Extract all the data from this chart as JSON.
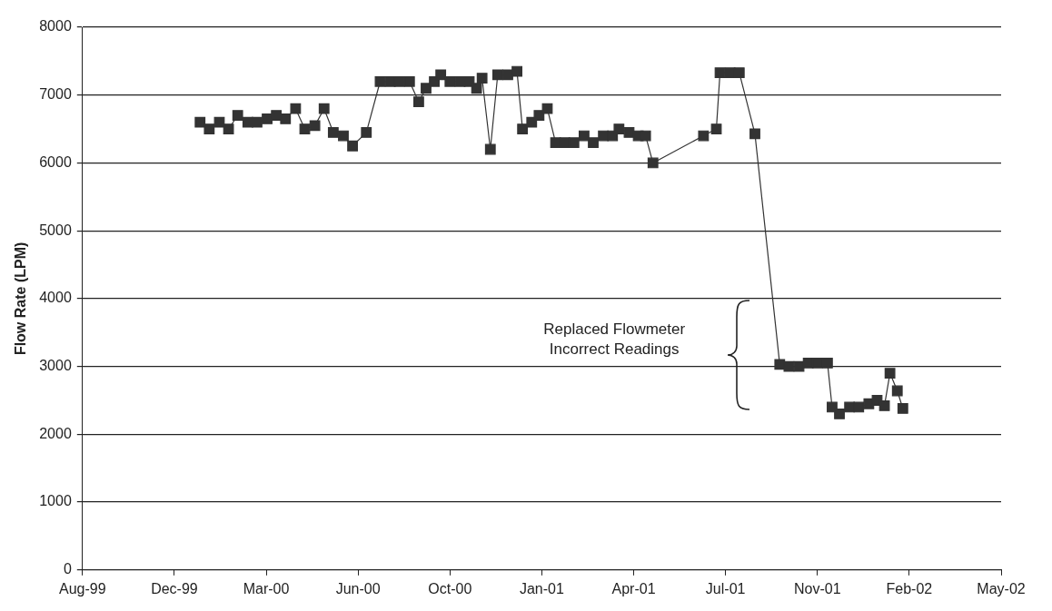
{
  "chart_data": {
    "type": "line",
    "ylabel": "Flow Rate (LPM)",
    "marker": "square",
    "line_style": "solid",
    "grid": "y",
    "legend": false,
    "annotations": [
      "Replaced Flowmeter\nIncorrect Readings"
    ],
    "xlim": [
      "1999-08-28",
      "2002-05-24"
    ],
    "xticks": [
      {
        "value": "1999-08-28",
        "label": "Aug-99"
      },
      {
        "value": "1999-12-06",
        "label": "Dec-99"
      },
      {
        "value": "2000-03-15",
        "label": "Mar-00"
      },
      {
        "value": "2000-06-23",
        "label": "Jun-00"
      },
      {
        "value": "2000-10-01",
        "label": "Oct-00"
      },
      {
        "value": "2001-01-09",
        "label": "Jan-01"
      },
      {
        "value": "2001-04-19",
        "label": "Apr-01"
      },
      {
        "value": "2001-07-28",
        "label": "Jul-01"
      },
      {
        "value": "2001-11-05",
        "label": "Nov-01"
      },
      {
        "value": "2002-02-13",
        "label": "Feb-02"
      },
      {
        "value": "2002-05-24",
        "label": "May-02"
      }
    ],
    "ylim": [
      0,
      8000
    ],
    "yticks": [
      0,
      1000,
      2000,
      3000,
      4000,
      5000,
      6000,
      7000,
      8000
    ],
    "series": [
      {
        "color": "#333333",
        "x": [
          "2000-01-03",
          "2000-01-13",
          "2000-01-24",
          "2000-02-03",
          "2000-02-13",
          "2000-02-24",
          "2000-03-05",
          "2000-03-16",
          "2000-03-26",
          "2000-04-05",
          "2000-04-16",
          "2000-04-26",
          "2000-05-07",
          "2000-05-17",
          "2000-05-27",
          "2000-06-07",
          "2000-06-17",
          "2000-07-02",
          "2000-07-17",
          "2000-07-28",
          "2000-08-07",
          "2000-08-18",
          "2000-08-28",
          "2000-09-05",
          "2000-09-14",
          "2000-09-21",
          "2000-10-01",
          "2000-10-12",
          "2000-10-22",
          "2000-10-30",
          "2000-11-05",
          "2000-11-14",
          "2000-11-22",
          "2000-12-03",
          "2000-12-13",
          "2000-12-19",
          "2000-12-29",
          "2001-01-06",
          "2001-01-15",
          "2001-01-24",
          "2001-02-03",
          "2001-02-13",
          "2001-02-24",
          "2001-03-06",
          "2001-03-17",
          "2001-03-27",
          "2001-04-03",
          "2001-04-14",
          "2001-04-24",
          "2001-05-02",
          "2001-05-10",
          "2001-07-04",
          "2001-07-18",
          "2001-07-22",
          "2001-08-02",
          "2001-08-12",
          "2001-08-29",
          "2001-09-25",
          "2001-10-05",
          "2001-10-16",
          "2001-10-26",
          "2001-11-05",
          "2001-11-16",
          "2001-11-21",
          "2001-11-29",
          "2001-12-10",
          "2001-12-20",
          "2001-12-31",
          "2002-01-09",
          "2002-01-17",
          "2002-01-23",
          "2002-01-31",
          "2002-02-06"
        ],
        "values": [
          6600,
          6500,
          6600,
          6500,
          6700,
          6600,
          6600,
          6650,
          6700,
          6650,
          6800,
          6500,
          6550,
          6800,
          6450,
          6400,
          6250,
          6450,
          7200,
          7200,
          7200,
          7200,
          6900,
          7100,
          7200,
          7300,
          7200,
          7200,
          7200,
          7100,
          7250,
          6200,
          7300,
          7300,
          7350,
          6500,
          6600,
          6700,
          6800,
          6300,
          6300,
          6300,
          6400,
          6300,
          6400,
          6400,
          6500,
          6450,
          6400,
          6400,
          6000,
          6400,
          6500,
          7330,
          7330,
          7330,
          6430,
          3030,
          3000,
          3000,
          3050,
          3050,
          3050,
          2400,
          2300,
          2400,
          2400,
          2450,
          2500,
          2420,
          2900,
          2640,
          2380
        ]
      }
    ]
  }
}
